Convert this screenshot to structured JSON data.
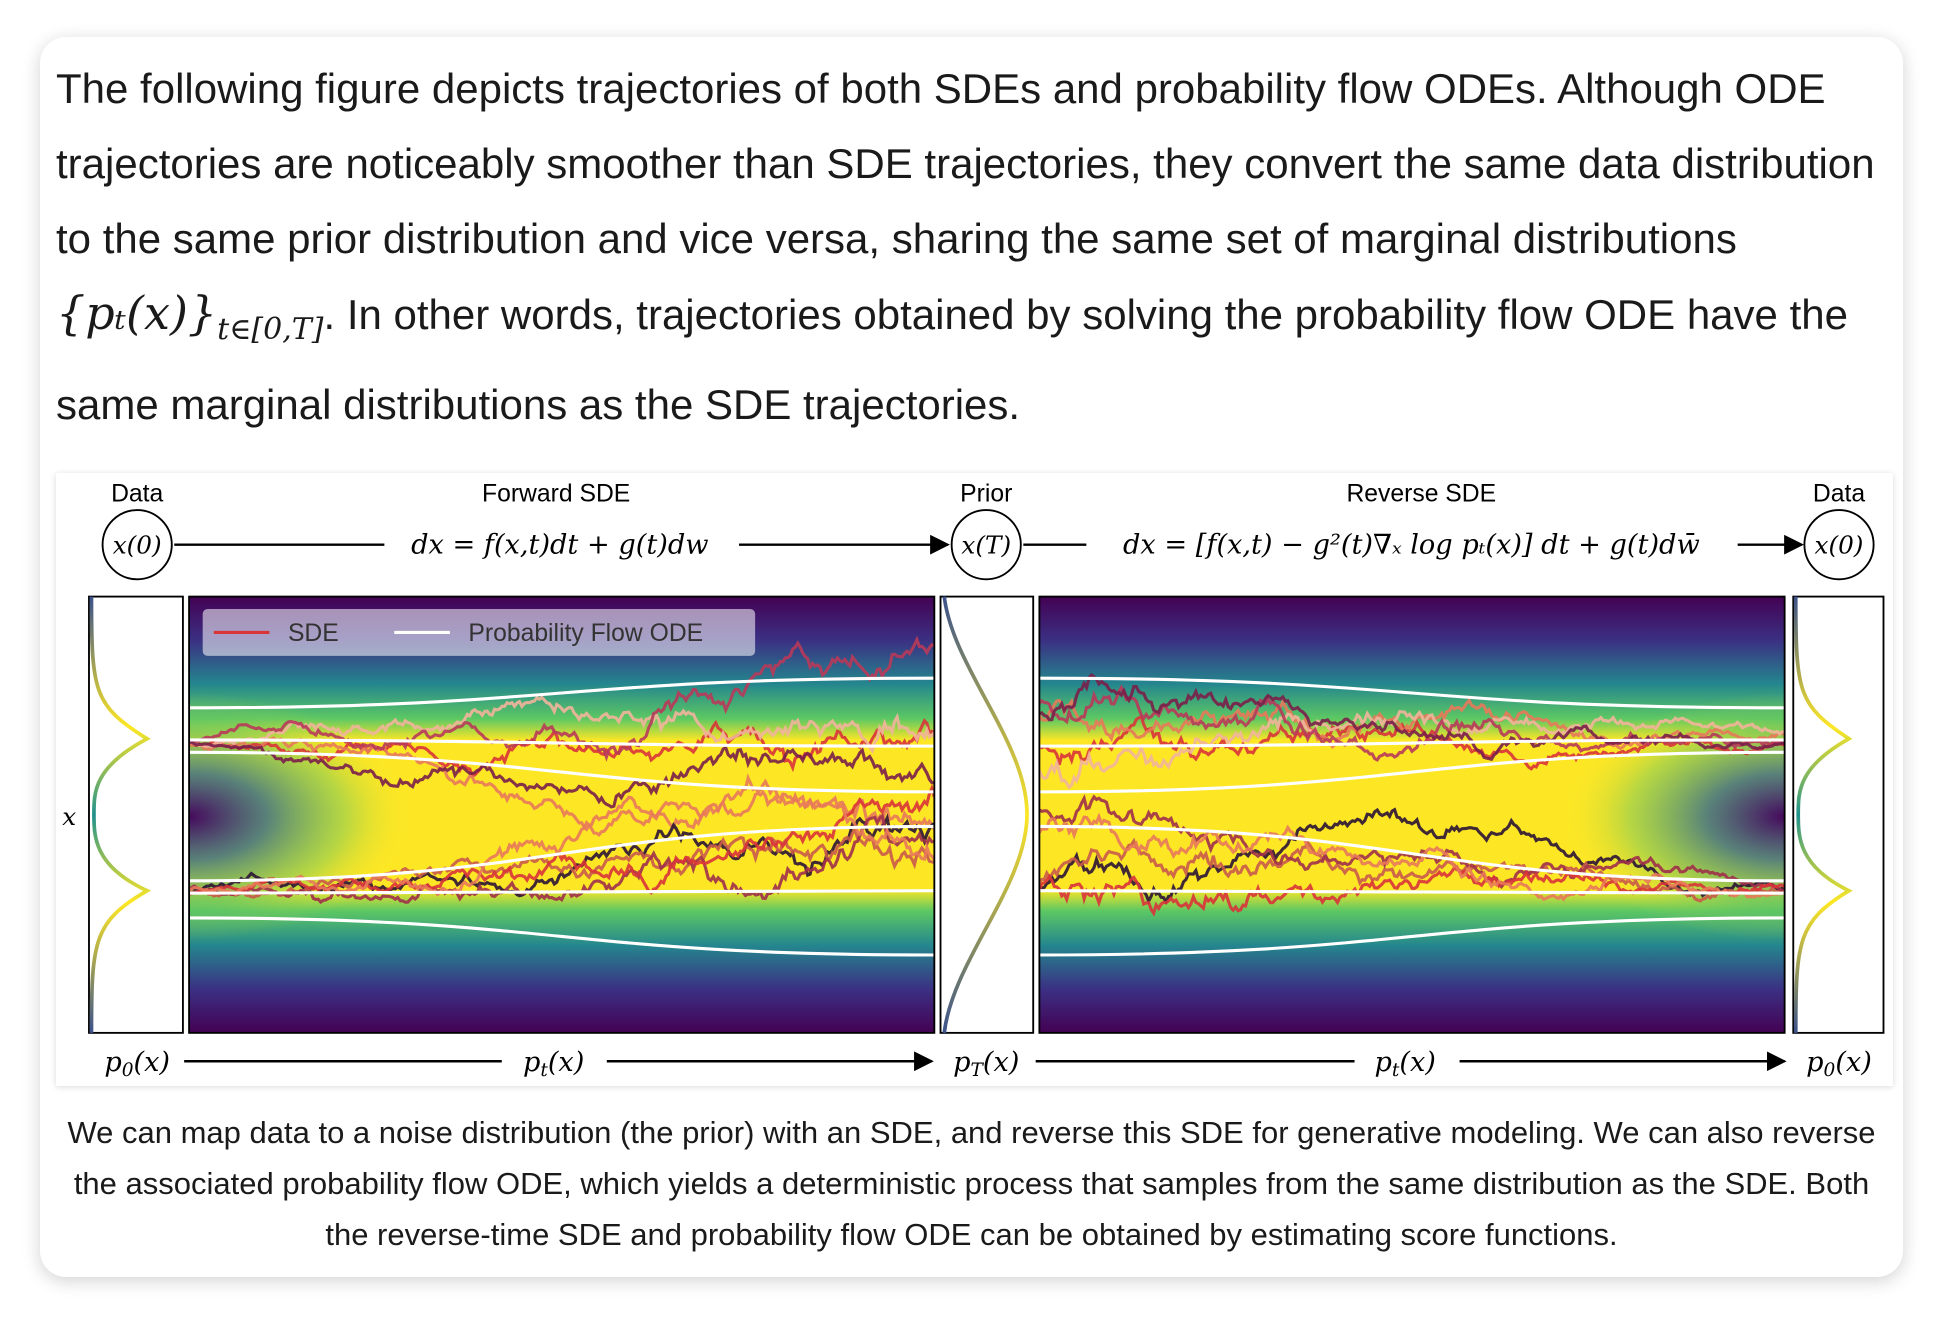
{
  "paragraph": {
    "before": "The following figure depicts trajectories of both SDEs and probability flow ODEs. Although ODE trajectories are noticeably smoother than SDE trajectories, they convert the same data distribution to the same prior distribution and vice versa, sharing the same set of marginal distributions ",
    "math": {
      "main": "{pₜ(x)}",
      "subscript": "t∈[0,T]"
    },
    "after": ". In other words, trajectories obtained by solving the probability flow ODE have the same marginal distributions as the SDE trajectories."
  },
  "figure": {
    "panel_titles": [
      "Data",
      "Forward SDE",
      "Prior",
      "Reverse SDE",
      "Data"
    ],
    "nodes": [
      "x(0)",
      "x(T)",
      "x(0)"
    ],
    "equations": {
      "forward": "dx = f(x,t)dt + g(t)dw",
      "reverse": "dx = [f(x,t) − g²(t)∇ₓ log pₜ(x)] dt + g(t)dw̄"
    },
    "y_axis_label": "x",
    "legend": [
      "SDE",
      "Probability Flow ODE"
    ],
    "densities": [
      {
        "main": "p",
        "subscript": "0",
        "rest": "(x)"
      },
      {
        "main": "p",
        "subscript": "t",
        "rest": "(x)"
      },
      {
        "main": "p",
        "subscript": "T",
        "rest": "(x)"
      },
      {
        "main": "p",
        "subscript": "t",
        "rest": "(x)"
      },
      {
        "main": "p",
        "subscript": "0",
        "rest": "(x)"
      }
    ]
  },
  "caption": "We can map data to a noise distribution (the prior) with an SDE, and reverse this SDE for generative modeling. We can also reverse the associated probability flow ODE, which yields a deterministic process that samples from the same distribution as the SDE. Both the reverse-time SDE and probability flow ODE can be obtained by estimating score functions."
}
